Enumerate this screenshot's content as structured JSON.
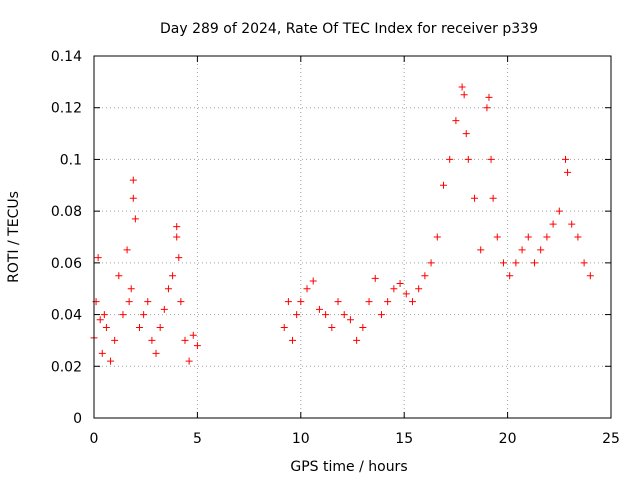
{
  "chart_data": {
    "type": "scatter",
    "title": "Day 289 of 2024, Rate Of TEC Index for receiver p339",
    "xlabel": "GPS time / hours",
    "ylabel": "ROTI / TECUs",
    "xlim": [
      0,
      25
    ],
    "ylim": [
      0,
      0.14
    ],
    "xticks": [
      0,
      5,
      10,
      15,
      20,
      25
    ],
    "yticks": [
      0,
      0.02,
      0.04,
      0.06,
      0.08,
      0.1,
      0.12,
      0.14
    ],
    "xtick_labels": [
      "0",
      "5",
      "10",
      "15",
      "20",
      "25"
    ],
    "ytick_labels": [
      "0",
      "0.02",
      "0.04",
      "0.06",
      "0.08",
      "0.1",
      "0.12",
      "0.14"
    ],
    "grid": true,
    "marker": "plus",
    "color": "#ff0000",
    "series": [
      {
        "x": [
          0.0,
          0.1,
          0.2,
          0.3,
          0.4,
          0.5,
          0.6,
          0.8,
          1.0,
          1.2,
          1.4,
          1.6,
          1.7,
          1.8,
          1.9,
          1.9,
          2.0,
          2.2,
          2.4,
          2.6,
          2.8,
          3.0,
          3.2,
          3.4,
          3.6,
          3.8,
          4.0,
          4.0,
          4.1,
          4.2,
          4.4,
          4.6,
          4.8,
          5.0,
          9.2,
          9.4,
          9.6,
          9.8,
          10.0,
          10.3,
          10.6,
          10.9,
          11.2,
          11.5,
          11.8,
          12.1,
          12.4,
          12.7,
          13.0,
          13.3,
          13.6,
          13.9,
          14.2,
          14.5,
          14.8,
          15.1,
          15.4,
          15.7,
          16.0,
          16.3,
          16.6,
          16.9,
          17.2,
          17.5,
          17.8,
          17.9,
          18.0,
          18.1,
          18.4,
          18.7,
          19.0,
          19.1,
          19.2,
          19.3,
          19.5,
          19.8,
          20.1,
          20.4,
          20.7,
          21.0,
          21.3,
          21.6,
          21.9,
          22.2,
          22.5,
          22.8,
          22.9,
          23.1,
          23.4,
          23.7,
          24.0
        ],
        "y": [
          0.031,
          0.045,
          0.062,
          0.038,
          0.025,
          0.04,
          0.035,
          0.022,
          0.03,
          0.055,
          0.04,
          0.065,
          0.045,
          0.05,
          0.092,
          0.085,
          0.077,
          0.035,
          0.04,
          0.045,
          0.03,
          0.025,
          0.035,
          0.042,
          0.05,
          0.055,
          0.07,
          0.074,
          0.062,
          0.045,
          0.03,
          0.022,
          0.032,
          0.028,
          0.035,
          0.045,
          0.03,
          0.04,
          0.045,
          0.05,
          0.053,
          0.042,
          0.04,
          0.035,
          0.045,
          0.04,
          0.038,
          0.03,
          0.035,
          0.045,
          0.054,
          0.04,
          0.045,
          0.05,
          0.052,
          0.048,
          0.045,
          0.05,
          0.055,
          0.06,
          0.07,
          0.09,
          0.1,
          0.115,
          0.128,
          0.125,
          0.11,
          0.1,
          0.085,
          0.065,
          0.12,
          0.124,
          0.1,
          0.085,
          0.07,
          0.06,
          0.055,
          0.06,
          0.065,
          0.07,
          0.06,
          0.065,
          0.07,
          0.075,
          0.08,
          0.1,
          0.095,
          0.075,
          0.07,
          0.06,
          0.055
        ]
      }
    ]
  }
}
